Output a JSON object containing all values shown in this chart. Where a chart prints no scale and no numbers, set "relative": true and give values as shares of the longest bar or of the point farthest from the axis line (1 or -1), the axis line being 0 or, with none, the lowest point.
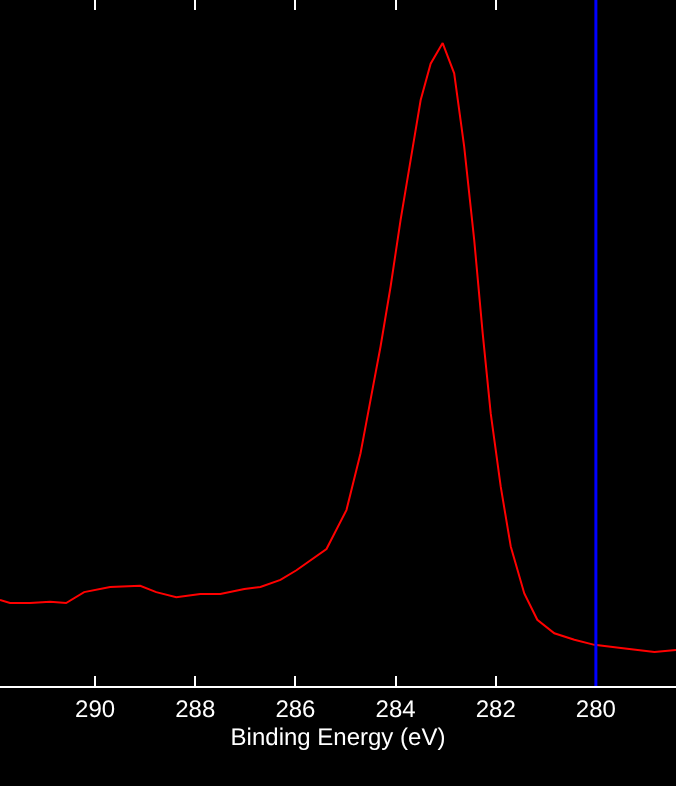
{
  "chart_data": {
    "type": "line",
    "relative": true,
    "xlabel": "Binding Energy (eV)",
    "xlim": [
      291.9,
      278.4
    ],
    "xticks": [
      290,
      288,
      286,
      284,
      282,
      280
    ],
    "grid": false,
    "marker": "none",
    "line_style": "solid",
    "ref_lines": [
      {
        "axis": "x",
        "value": 280,
        "color": "#0000ff"
      }
    ],
    "series": [
      {
        "color": "#ff0000",
        "x": [
          291.9,
          291.7,
          291.3,
          290.9,
          290.58,
          290.22,
          289.7,
          289.1,
          288.78,
          288.38,
          287.9,
          287.5,
          287.02,
          286.7,
          286.3,
          285.98,
          285.38,
          284.98,
          284.7,
          284.5,
          284.3,
          284.1,
          283.9,
          283.7,
          283.5,
          283.3,
          283.06,
          282.83,
          282.63,
          282.43,
          282.26,
          282.1,
          281.9,
          281.7,
          281.43,
          281.17,
          280.83,
          280.43,
          280.03,
          279.5,
          278.83,
          278.4
        ],
        "values": [
          0.134,
          0.129,
          0.129,
          0.131,
          0.129,
          0.146,
          0.154,
          0.156,
          0.146,
          0.138,
          0.143,
          0.143,
          0.151,
          0.154,
          0.165,
          0.18,
          0.213,
          0.274,
          0.362,
          0.445,
          0.528,
          0.621,
          0.725,
          0.818,
          0.911,
          0.968,
          1.0,
          0.953,
          0.839,
          0.694,
          0.548,
          0.424,
          0.31,
          0.217,
          0.144,
          0.103,
          0.082,
          0.072,
          0.064,
          0.059,
          0.053,
          0.056
        ]
      }
    ]
  }
}
